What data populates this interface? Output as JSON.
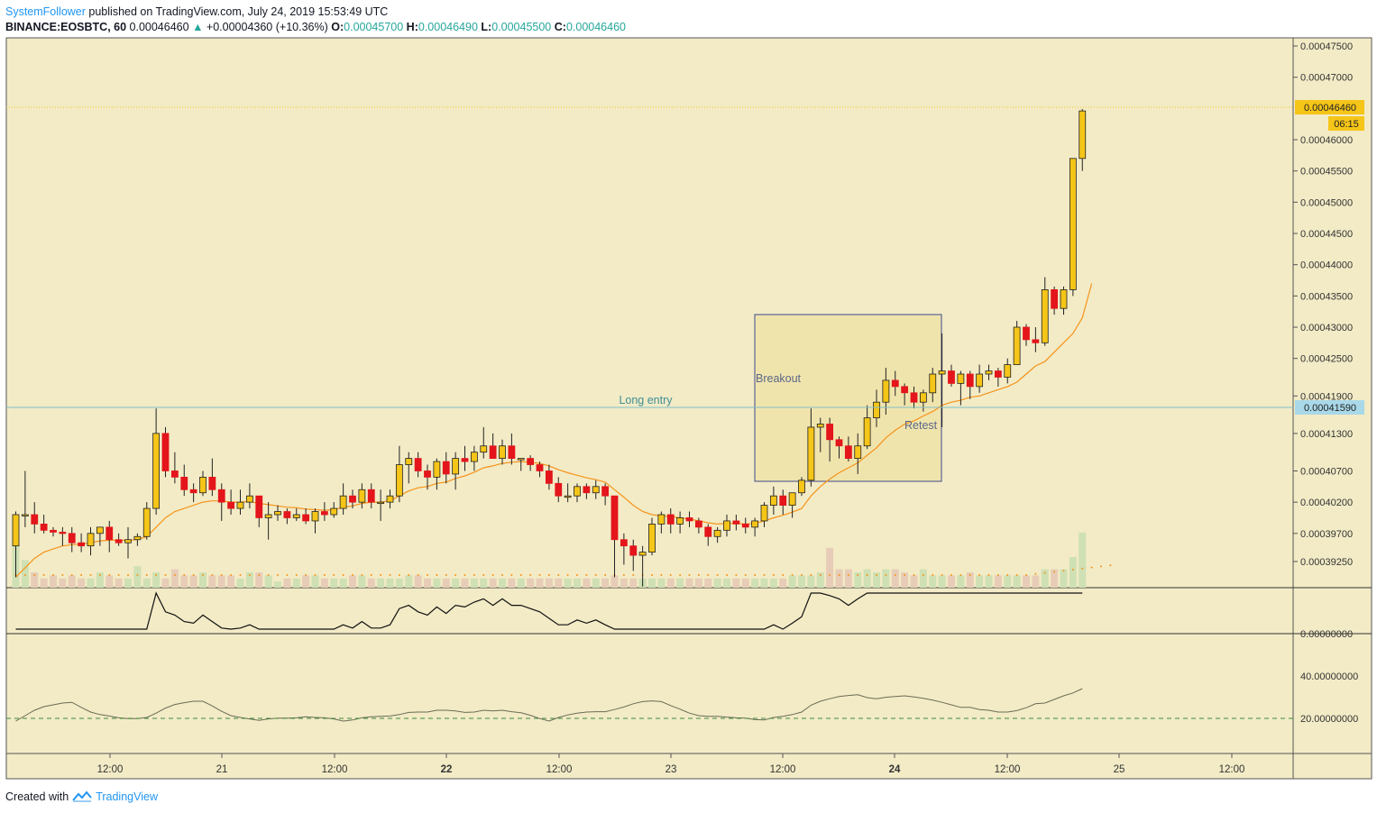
{
  "header": {
    "author": "SystemFollower",
    "published": "published on TradingView.com, July 24, 2019 15:53:49 UTC",
    "symbol": "BINANCE:EOSBTC, 60",
    "last": "0.00046460",
    "change": "+0.00004360 (+10.36%)",
    "o_label": "O:",
    "o_value": "0.00045700",
    "h_label": "H:",
    "h_value": "0.00046490",
    "l_label": "L:",
    "l_value": "0.00045500",
    "c_label": "C:",
    "c_value": "0.00046460"
  },
  "footer": {
    "created_with": "Created with",
    "brand": "TradingView"
  },
  "colors": {
    "background": "#f2ebc6",
    "bull": "#f5c518",
    "bear": "#e4151b",
    "ema": "#f7931a",
    "entry_line": "#7fbfc6",
    "box_fill": "#f0e4ad",
    "box_stroke": "#3f4a8c",
    "price_tag": "#f5c518",
    "entry_tag": "#a9d8e8"
  },
  "chart_data": {
    "type": "candlestick",
    "symbol": "BINANCE:EOSBTC",
    "interval": "60",
    "price_axis_labels": [
      "0.00047500",
      "0.00047000",
      "0.00046460",
      "0.00046000",
      "0.00045500",
      "0.00045000",
      "0.00044500",
      "0.00044000",
      "0.00043500",
      "0.00043000",
      "0.00042500",
      "0.00041900",
      "0.00041590",
      "0.00041300",
      "0.00040700",
      "0.00040200",
      "0.00039700",
      "0.00039250"
    ],
    "time_axis_labels": [
      "12:00",
      "21",
      "12:00",
      "22",
      "12:00",
      "23",
      "12:00",
      "24",
      "12:00",
      "25",
      "12:00"
    ],
    "current_price": "0.00046460",
    "countdown": "06:15",
    "long_entry_price": "0.00041590",
    "annotations": {
      "long_entry": "Long entry",
      "breakout": "Breakout",
      "retest": "Retest"
    },
    "osc1_label": "0.00000000",
    "osc2_labels": [
      "40.00000000",
      "20.00000000"
    ],
    "candles_ohlc": [
      [
        0.000395,
        0.0004005,
        0.00039,
        0.0004
      ],
      [
        0.0004,
        0.000407,
        0.000398,
        0.0004
      ],
      [
        0.0004,
        0.000402,
        0.000397,
        0.0003985
      ],
      [
        0.0003985,
        0.0004,
        0.000397,
        0.0003975
      ],
      [
        0.0003975,
        0.000398,
        0.0003965,
        0.0003972
      ],
      [
        0.0003972,
        0.000398,
        0.000395,
        0.000397
      ],
      [
        0.000397,
        0.000398,
        0.000394,
        0.0003955
      ],
      [
        0.0003955,
        0.000397,
        0.000394,
        0.000395
      ],
      [
        0.000395,
        0.000398,
        0.0003935,
        0.000397
      ],
      [
        0.000397,
        0.000398,
        0.000395,
        0.000398
      ],
      [
        0.000398,
        0.000399,
        0.000394,
        0.000396
      ],
      [
        0.000396,
        0.000397,
        0.000395,
        0.0003955
      ],
      [
        0.0003955,
        0.000398,
        0.000393,
        0.000396
      ],
      [
        0.000396,
        0.000397,
        0.000395,
        0.0003965
      ],
      [
        0.0003965,
        0.000402,
        0.000396,
        0.000401
      ],
      [
        0.000401,
        0.000417,
        0.0004,
        0.000413
      ],
      [
        0.000413,
        0.000414,
        0.000406,
        0.000407
      ],
      [
        0.000407,
        0.00041,
        0.000405,
        0.000406
      ],
      [
        0.000406,
        0.000408,
        0.000403,
        0.000404
      ],
      [
        0.000404,
        0.000405,
        0.000402,
        0.0004035
      ],
      [
        0.0004035,
        0.000407,
        0.000403,
        0.000406
      ],
      [
        0.000406,
        0.000409,
        0.000403,
        0.000404
      ],
      [
        0.000404,
        0.000405,
        0.000399,
        0.000402
      ],
      [
        0.000402,
        0.000404,
        0.0004,
        0.000401
      ],
      [
        0.000401,
        0.000404,
        0.0004,
        0.000402
      ],
      [
        0.000402,
        0.000405,
        0.000401,
        0.000403
      ],
      [
        0.000403,
        0.000403,
        0.000398,
        0.0003995
      ],
      [
        0.0003995,
        0.000402,
        0.000396,
        0.0004
      ],
      [
        0.0004,
        0.0004015,
        0.000399,
        0.0004005
      ],
      [
        0.0004005,
        0.000401,
        0.0003985,
        0.0003995
      ],
      [
        0.0003995,
        0.000401,
        0.000399,
        0.0004
      ],
      [
        0.0004,
        0.000401,
        0.0003985,
        0.000399
      ],
      [
        0.000399,
        0.000401,
        0.000397,
        0.0004005
      ],
      [
        0.0004005,
        0.000402,
        0.000399,
        0.0004
      ],
      [
        0.0004,
        0.000402,
        0.0003995,
        0.000401
      ],
      [
        0.000401,
        0.000405,
        0.0004,
        0.000403
      ],
      [
        0.000403,
        0.000404,
        0.000401,
        0.000402
      ],
      [
        0.000402,
        0.000405,
        0.000401,
        0.000404
      ],
      [
        0.000404,
        0.000405,
        0.000401,
        0.000402
      ],
      [
        0.000402,
        0.000404,
        0.000399,
        0.000402
      ],
      [
        0.000402,
        0.000404,
        0.000401,
        0.000403
      ],
      [
        0.000403,
        0.000411,
        0.000402,
        0.000408
      ],
      [
        0.000408,
        0.00041,
        0.000405,
        0.000409
      ],
      [
        0.000409,
        0.00041,
        0.000406,
        0.000407
      ],
      [
        0.000407,
        0.000408,
        0.000404,
        0.000406
      ],
      [
        0.000406,
        0.000409,
        0.000404,
        0.0004085
      ],
      [
        0.0004085,
        0.00041,
        0.000405,
        0.0004065
      ],
      [
        0.0004065,
        0.00041,
        0.000404,
        0.000409
      ],
      [
        0.000409,
        0.000411,
        0.000407,
        0.0004085
      ],
      [
        0.0004085,
        0.000411,
        0.000407,
        0.00041
      ],
      [
        0.00041,
        0.000414,
        0.000409,
        0.000411
      ],
      [
        0.000411,
        0.000413,
        0.000409,
        0.000409
      ],
      [
        0.000409,
        0.000412,
        0.000408,
        0.000411
      ],
      [
        0.000411,
        0.000413,
        0.000408,
        0.000409
      ],
      [
        0.000409,
        0.000409,
        0.000407,
        0.000409
      ],
      [
        0.000409,
        0.0004095,
        0.000407,
        0.000408
      ],
      [
        0.000408,
        0.0004085,
        0.000406,
        0.000407
      ],
      [
        0.000407,
        0.000408,
        0.000404,
        0.000405
      ],
      [
        0.000405,
        0.000406,
        0.000402,
        0.000403
      ],
      [
        0.000403,
        0.000405,
        0.000402,
        0.000403
      ],
      [
        0.000403,
        0.000405,
        0.000402,
        0.0004045
      ],
      [
        0.0004045,
        0.000405,
        0.0004025,
        0.0004035
      ],
      [
        0.0004035,
        0.0004055,
        0.0004025,
        0.0004045
      ],
      [
        0.0004045,
        0.000405,
        0.0004015,
        0.000403
      ],
      [
        0.000403,
        0.000403,
        0.00039,
        0.000396
      ],
      [
        0.000396,
        0.000397,
        0.000392,
        0.000395
      ],
      [
        0.000395,
        0.000396,
        0.000391,
        0.0003935
      ],
      [
        0.0003935,
        0.000395,
        0.0003885,
        0.000394
      ],
      [
        0.000394,
        0.0003995,
        0.0003935,
        0.0003985
      ],
      [
        0.0003985,
        0.0004005,
        0.000397,
        0.0004
      ],
      [
        0.0004,
        0.000401,
        0.000397,
        0.0003985
      ],
      [
        0.0003985,
        0.0004005,
        0.000397,
        0.0003995
      ],
      [
        0.0003995,
        0.0004005,
        0.000398,
        0.000399
      ],
      [
        0.000399,
        0.0003995,
        0.000397,
        0.000398
      ],
      [
        0.000398,
        0.0003985,
        0.000395,
        0.0003965
      ],
      [
        0.0003965,
        0.000398,
        0.0003955,
        0.0003975
      ],
      [
        0.0003975,
        0.0004,
        0.0003965,
        0.000399
      ],
      [
        0.000399,
        0.0004,
        0.0003975,
        0.0003985
      ],
      [
        0.0003985,
        0.0003995,
        0.000397,
        0.000398
      ],
      [
        0.000398,
        0.0003995,
        0.0003965,
        0.000399
      ],
      [
        0.000399,
        0.000402,
        0.000398,
        0.0004015
      ],
      [
        0.0004015,
        0.0004045,
        0.0004,
        0.000403
      ],
      [
        0.000403,
        0.000404,
        0.0004,
        0.0004015
      ],
      [
        0.0004015,
        0.0004035,
        0.0003995,
        0.0004035
      ],
      [
        0.0004035,
        0.000406,
        0.000403,
        0.0004055
      ],
      [
        0.0004055,
        0.000417,
        0.0004045,
        0.000414
      ],
      [
        0.000414,
        0.0004155,
        0.00041,
        0.0004145
      ],
      [
        0.0004145,
        0.0004155,
        0.0004085,
        0.000412
      ],
      [
        0.000412,
        0.0004125,
        0.000409,
        0.000411
      ],
      [
        0.000411,
        0.0004125,
        0.0004085,
        0.000409
      ],
      [
        0.000409,
        0.000413,
        0.0004065,
        0.000411
      ],
      [
        0.000411,
        0.0004175,
        0.0004105,
        0.0004155
      ],
      [
        0.0004155,
        0.00042,
        0.000414,
        0.000418
      ],
      [
        0.000418,
        0.0004235,
        0.000416,
        0.0004215
      ],
      [
        0.0004215,
        0.000423,
        0.000419,
        0.0004205
      ],
      [
        0.0004205,
        0.000421,
        0.0004175,
        0.0004195
      ],
      [
        0.0004195,
        0.0004205,
        0.000417,
        0.000418
      ],
      [
        0.000418,
        0.00042,
        0.0004165,
        0.0004195
      ],
      [
        0.0004195,
        0.0004235,
        0.000418,
        0.0004225
      ],
      [
        0.0004225,
        0.000429,
        0.000414,
        0.000423
      ],
      [
        0.000423,
        0.000424,
        0.0004205,
        0.000421
      ],
      [
        0.000421,
        0.000423,
        0.0004175,
        0.0004225
      ],
      [
        0.0004225,
        0.000423,
        0.0004185,
        0.0004205
      ],
      [
        0.0004205,
        0.000424,
        0.0004195,
        0.0004225
      ],
      [
        0.0004225,
        0.000424,
        0.0004215,
        0.000423
      ],
      [
        0.000423,
        0.0004235,
        0.0004205,
        0.000422
      ],
      [
        0.000422,
        0.000425,
        0.000421,
        0.000424
      ],
      [
        0.000424,
        0.000431,
        0.000424,
        0.00043
      ],
      [
        0.00043,
        0.0004305,
        0.000427,
        0.000428
      ],
      [
        0.000428,
        0.00043,
        0.000426,
        0.0004275
      ],
      [
        0.0004275,
        0.000438,
        0.000427,
        0.000436
      ],
      [
        0.000436,
        0.0004365,
        0.000432,
        0.000433
      ],
      [
        0.000433,
        0.0004365,
        0.000432,
        0.000436
      ],
      [
        0.000436,
        0.000457,
        0.000435,
        0.000457
      ],
      [
        0.000457,
        0.0004649,
        0.000455,
        0.0004646
      ]
    ],
    "ema": [
      0.00039,
      0.0003915,
      0.000393,
      0.000394,
      0.0003945,
      0.000395,
      0.0003952,
      0.0003953,
      0.0003955,
      0.0003958,
      0.0003959,
      0.0003959,
      0.0003959,
      0.000396,
      0.0003965,
      0.000398,
      0.0003995,
      0.0004005,
      0.000401,
      0.0004015,
      0.000402,
      0.0004022,
      0.0004022,
      0.000402,
      0.000402,
      0.0004021,
      0.0004018,
      0.0004016,
      0.0004014,
      0.0004012,
      0.0004011,
      0.0004009,
      0.0004008,
      0.0004007,
      0.0004008,
      0.0004012,
      0.0004014,
      0.0004018,
      0.000402,
      0.000402,
      0.0004022,
      0.000403,
      0.0004038,
      0.0004043,
      0.0004045,
      0.000405,
      0.0004052,
      0.0004058,
      0.0004062,
      0.0004068,
      0.0004075,
      0.0004078,
      0.0004082,
      0.0004084,
      0.0004085,
      0.0004084,
      0.0004082,
      0.0004078,
      0.0004072,
      0.0004067,
      0.0004063,
      0.0004059,
      0.0004056,
      0.0004052,
      0.000404,
      0.0004028,
      0.0004015,
      0.0004005,
      0.0004,
      0.0003998,
      0.0003997,
      0.0003995,
      0.0003993,
      0.000399,
      0.0003987,
      0.0003985,
      0.0003986,
      0.0003986,
      0.0003985,
      0.0003986,
      0.000399,
      0.0003995,
      0.0003999,
      0.0004004,
      0.000401,
      0.000403,
      0.0004045,
      0.0004057,
      0.0004067,
      0.0004075,
      0.0004083,
      0.0004095,
      0.0004107,
      0.0004123,
      0.0004135,
      0.0004145,
      0.000415,
      0.0004158,
      0.0004165,
      0.0004175,
      0.000418,
      0.0004183,
      0.0004188,
      0.000419,
      0.0004195,
      0.00042,
      0.0004205,
      0.0004212,
      0.0004225,
      0.0004238,
      0.0004245,
      0.000426,
      0.0004275,
      0.000429,
      0.0004315,
      0.000437
    ],
    "volume": [
      18,
      9,
      5,
      3,
      4,
      3,
      4,
      3,
      3,
      5,
      4,
      3,
      3,
      7,
      3,
      5,
      3,
      6,
      4,
      4,
      5,
      4,
      4,
      4,
      3,
      5,
      5,
      4,
      2,
      3,
      3,
      4,
      4,
      3,
      3,
      3,
      4,
      4,
      3,
      3,
      3,
      3,
      4,
      4,
      3,
      3,
      3,
      3,
      3,
      3,
      3,
      3,
      3,
      3,
      3,
      3,
      3,
      3,
      3,
      3,
      3,
      3,
      3,
      3,
      4,
      3,
      3,
      3,
      3,
      3,
      3,
      3,
      3,
      3,
      3,
      3,
      3,
      3,
      3,
      3,
      3,
      3,
      3,
      4,
      4,
      4,
      5,
      13,
      6,
      6,
      5,
      6,
      5,
      6,
      6,
      5,
      4,
      6,
      4,
      4,
      4,
      4,
      5,
      4,
      4,
      4,
      4,
      4,
      4,
      4,
      6,
      6,
      6,
      10,
      18,
      20,
      45,
      30
    ]
  }
}
